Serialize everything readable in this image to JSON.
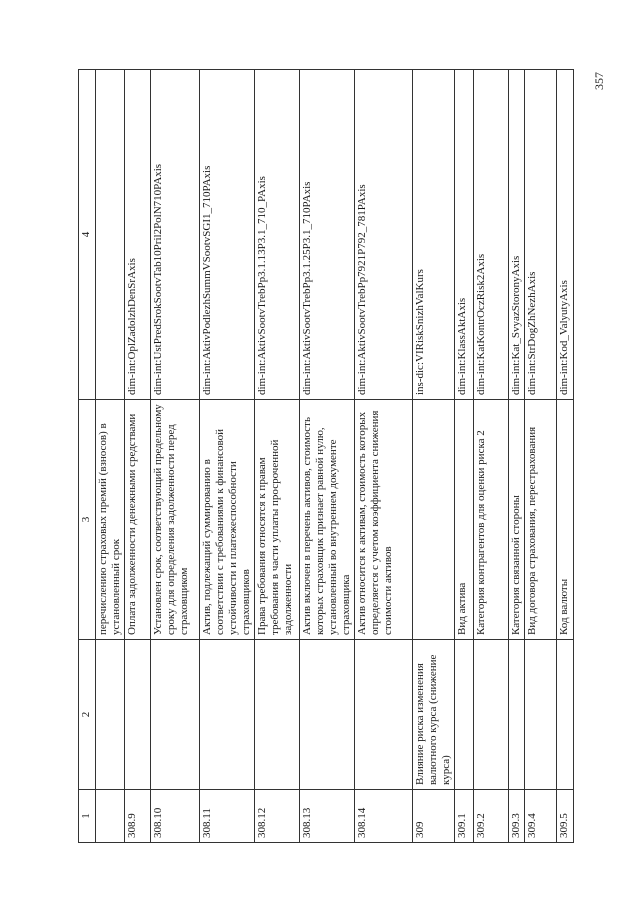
{
  "page_number": "357",
  "header": [
    "1",
    "2",
    "3",
    "4"
  ],
  "rows": [
    {
      "c1": "",
      "c2": "",
      "c3": "перечислению страховых премий (взносов) в установленный срок",
      "c4": ""
    },
    {
      "c1": "308.9",
      "c2": "",
      "c3": "Оплата задолженности денежными средствами",
      "c4": "dim-int:OplZadolzhDenSrAxis"
    },
    {
      "c1": "308.10",
      "c2": "",
      "c3": "Установлен срок, соответствующий предельному сроку для определения задолженности перед страховщиком",
      "c4": "dim-int:UstPredSrokSootvTab10Pril2PolN710PAxis"
    },
    {
      "c1": "308.11",
      "c2": "",
      "c3": "Актив, подлежащий суммированию в соответствии с требованиями к финансовой устойчивости и платежеспособности страховщиков",
      "c4": "dim-int:AktivPodlezhSummVSootvSGI1_710PAxis"
    },
    {
      "c1": "308.12",
      "c2": "",
      "c3": "Права требования относятся к правам требования в части уплаты просроченной задолженности",
      "c4": "dim-int:AktivSootvTrebPp3.1.13P3.1_710_PAxis"
    },
    {
      "c1": "308.13",
      "c2": "",
      "c3": "Актив включен в перечень активов, стоимость которых страховщик признает равной нулю, установленный во внутреннем документе страховщика",
      "c4": "dim-int:AktivSootvTrebPp3.1.25P3.1_710PAxis"
    },
    {
      "c1": "308.14",
      "c2": "",
      "c3": "Актив относится к активам, стоимость которых определяется с учетом коэффициента снижения стоимости активов",
      "c4": "dim-int:AktivSootvTrebPp7921P792_781PAxis"
    },
    {
      "c1": "309",
      "c2": "Влияние риска изменения валютного курса (снижение курса)",
      "c3": "",
      "c4": "ins-dic:VIRiskSnizhValKurs"
    },
    {
      "c1": "309.1",
      "c2": "",
      "c3": "Вид актива",
      "c4": "dim-int:KlassAktAxis"
    },
    {
      "c1": "309.2",
      "c2": "",
      "c3": "Категория контрагентов для оценки риска 2",
      "c4": "dim-int:KatKontrOczRisk2Axis"
    },
    {
      "c1": "309.3",
      "c2": "",
      "c3": "Категория связанной стороны",
      "c4": "dim-int:Kat_SvyazStoronyAxis"
    },
    {
      "c1": "309.4",
      "c2": "",
      "c3": "Вид договора страхования, перестрахования",
      "c4": "dim-int:StrDogZhNezhAxis"
    },
    {
      "c1": "309.5",
      "c2": "",
      "c3": "Код валюты",
      "c4": "dim-int:Kod_ValyutyAxis"
    }
  ]
}
